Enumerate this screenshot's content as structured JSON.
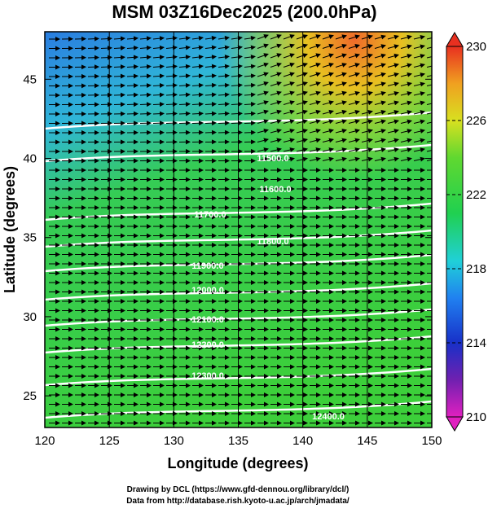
{
  "map": {
    "title": "MSM 03Z16Dec2025 (200.0hPa)",
    "xlabel": "Longitude (degrees)",
    "ylabel": "Latitude  (degrees)",
    "xlim": [
      120,
      150
    ],
    "ylim": [
      23,
      48
    ],
    "xticks": [
      120,
      125,
      130,
      135,
      140,
      145,
      150
    ],
    "yticks": [
      25,
      30,
      35,
      40,
      45
    ],
    "colorbar": {
      "lim": [
        210,
        230
      ],
      "ticks": [
        210,
        214,
        218,
        222,
        226,
        230
      ]
    },
    "contour_labels": [
      "11500.0",
      "11600.0",
      "11700.0",
      "11800.0",
      "11900.0",
      "12000.0",
      "12100.0",
      "12200.0",
      "12300.0",
      "12400.0"
    ],
    "credits": [
      "Drawing by DCL (https://www.gfd-dennou.org/library/dcl/)",
      "Data from http://database.rish.kyoto-u.ac.jp/arch/jmadata/"
    ]
  }
}
